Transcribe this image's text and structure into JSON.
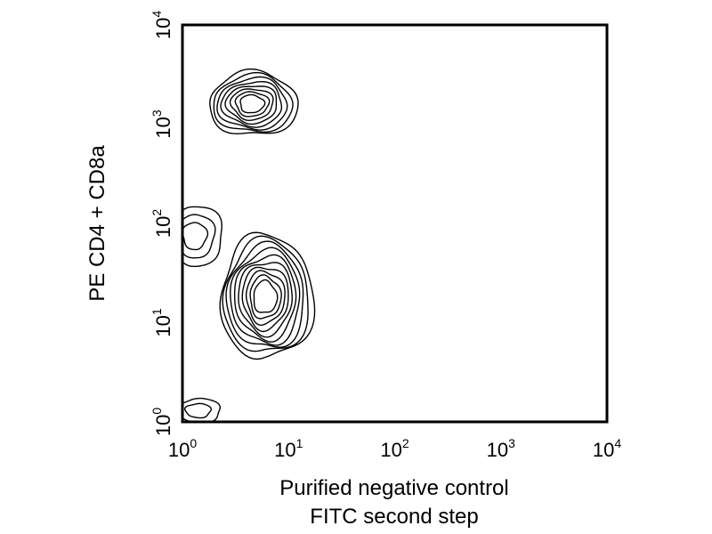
{
  "chart_data": {
    "type": "contour",
    "xlabel": [
      "Purified negative control",
      "FITC second step"
    ],
    "ylabel": "PE CD4 + CD8a",
    "x_scale": "log",
    "y_scale": "log",
    "xlim": [
      1,
      10000
    ],
    "ylim": [
      1,
      10000
    ],
    "x_ticks": [
      {
        "value": 1,
        "base": "10",
        "exp": "0"
      },
      {
        "value": 10,
        "base": "10",
        "exp": "1"
      },
      {
        "value": 100,
        "base": "10",
        "exp": "2"
      },
      {
        "value": 1000,
        "base": "10",
        "exp": "3"
      },
      {
        "value": 10000,
        "base": "10",
        "exp": "4"
      }
    ],
    "y_ticks": [
      {
        "value": 1,
        "base": "10",
        "exp": "0"
      },
      {
        "value": 10,
        "base": "10",
        "exp": "1"
      },
      {
        "value": 100,
        "base": "10",
        "exp": "2"
      },
      {
        "value": 1000,
        "base": "10",
        "exp": "3"
      },
      {
        "value": 10000,
        "base": "10",
        "exp": "4"
      }
    ],
    "grid": false,
    "populations": [
      {
        "center": [
          6,
          18
        ],
        "log_spread": [
          0.42,
          0.62
        ],
        "levels": 10
      },
      {
        "center": [
          4.5,
          1600
        ],
        "log_spread": [
          0.4,
          0.32
        ],
        "levels": 8
      },
      {
        "center": [
          1.3,
          75
        ],
        "log_spread": [
          0.25,
          0.3
        ],
        "levels": 3
      },
      {
        "center": [
          1.4,
          1.3
        ],
        "log_spread": [
          0.2,
          0.12
        ],
        "levels": 2
      }
    ]
  }
}
